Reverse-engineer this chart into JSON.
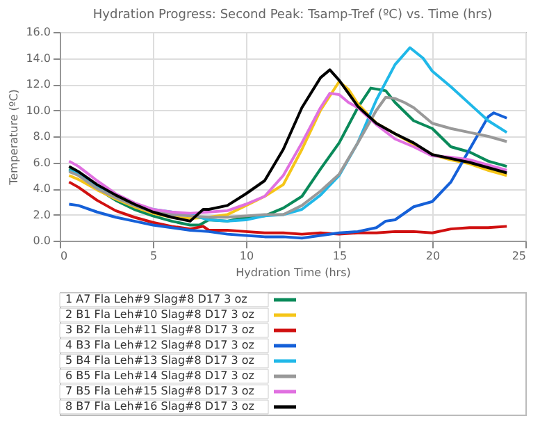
{
  "chart_data": {
    "type": "line",
    "title": "Hydration Progress: Second Peak: Tsamp-Tref (ºC) vs. Time (hrs)",
    "xlabel": "Hydration Time (hrs)",
    "ylabel": "Temperature (ºC)",
    "xlim": [
      0,
      25
    ],
    "xticks": [
      0,
      5,
      10,
      15,
      20,
      25
    ],
    "ylim": [
      0,
      16
    ],
    "yticks": [
      {
        "value": 0,
        "label": "0.0"
      },
      {
        "value": 2,
        "label": "2.0"
      },
      {
        "value": 4,
        "label": "4.0"
      },
      {
        "value": 6,
        "label": "6.0"
      },
      {
        "value": 8,
        "label": "8.0"
      },
      {
        "value": 10,
        "label": "10.0"
      },
      {
        "value": 12,
        "label": "12.0"
      },
      {
        "value": 14,
        "label": "14.0"
      },
      {
        "value": 16,
        "label": "16.0"
      }
    ],
    "grid": true,
    "legend": "bottom",
    "marker": "none",
    "line_style": "solid",
    "series": [
      {
        "name": "1 A7 Fla Leh#9 Slag#8 D17 3 oz",
        "color": "#0a8a5a",
        "x": [
          0.5,
          1,
          2,
          3,
          4,
          5,
          6,
          7,
          7.5,
          8,
          9,
          10,
          11,
          12,
          13,
          14,
          15,
          16,
          16.7,
          17.5,
          18,
          19,
          20,
          21,
          22,
          23,
          24
        ],
        "values": [
          5.5,
          5.1,
          4.0,
          3.1,
          2.4,
          1.9,
          1.5,
          1.2,
          1.2,
          1.6,
          1.5,
          1.8,
          1.9,
          2.5,
          3.4,
          5.5,
          7.5,
          10.2,
          11.7,
          11.5,
          10.6,
          9.2,
          8.6,
          7.2,
          6.8,
          6.1,
          5.7
        ]
      },
      {
        "name": "2 B1 Fla Leh#10 Slag#8 D17 3 oz",
        "color": "#f5c518",
        "x": [
          0.5,
          1,
          2,
          3,
          4,
          5,
          6,
          7,
          8,
          9,
          10,
          11,
          12,
          13,
          14,
          15,
          15.5,
          16,
          17,
          18,
          19,
          20,
          21,
          22,
          23,
          24
        ],
        "values": [
          5.0,
          4.7,
          3.9,
          3.2,
          2.6,
          2.1,
          1.8,
          1.7,
          1.8,
          2.0,
          2.7,
          3.4,
          4.3,
          7.0,
          10.0,
          12.2,
          11.6,
          10.5,
          9.0,
          8.2,
          7.4,
          6.6,
          6.2,
          5.9,
          5.4,
          5.0
        ]
      },
      {
        "name": "3 B2 Fla Leh#11 Slag#8 D17 3 oz",
        "color": "#d01010",
        "x": [
          0.5,
          1,
          2,
          3,
          4,
          5,
          6,
          7,
          7.7,
          8,
          9,
          10,
          11,
          12,
          13,
          14,
          15,
          16,
          17,
          18,
          19,
          20,
          21,
          22,
          23,
          24
        ],
        "values": [
          4.5,
          4.1,
          3.1,
          2.3,
          1.8,
          1.4,
          1.1,
          0.9,
          1.1,
          0.8,
          0.8,
          0.7,
          0.6,
          0.6,
          0.5,
          0.6,
          0.5,
          0.6,
          0.6,
          0.7,
          0.7,
          0.6,
          0.9,
          1.0,
          1.0,
          1.1
        ]
      },
      {
        "name": "4 B3 Fla Leh#12 Slag#8 D17 3 oz",
        "color": "#1560d8",
        "x": [
          0.5,
          1,
          2,
          3,
          4,
          5,
          6,
          7,
          8,
          9,
          10,
          11,
          12,
          13,
          14,
          15,
          16,
          17,
          17.5,
          18,
          19,
          20,
          21,
          22,
          23,
          23.3,
          24
        ],
        "values": [
          2.8,
          2.7,
          2.2,
          1.8,
          1.5,
          1.2,
          1.0,
          0.8,
          0.7,
          0.5,
          0.4,
          0.3,
          0.3,
          0.2,
          0.4,
          0.6,
          0.7,
          1.0,
          1.5,
          1.6,
          2.6,
          3.0,
          4.5,
          7.0,
          9.5,
          9.8,
          9.4
        ]
      },
      {
        "name": "5 B4 Fla Leh#13 Slag#8 D17 3 oz",
        "color": "#20b8e8",
        "x": [
          0.5,
          1,
          2,
          3,
          4,
          5,
          6,
          7,
          8,
          9,
          10,
          11,
          12,
          13,
          14,
          15,
          16,
          17,
          18,
          18.8,
          19.5,
          20,
          21,
          22,
          23,
          24
        ],
        "values": [
          5.4,
          5.1,
          4.2,
          3.4,
          2.8,
          2.4,
          2.2,
          2.0,
          1.6,
          1.5,
          1.6,
          1.9,
          2.0,
          2.4,
          3.5,
          5.0,
          7.5,
          10.8,
          13.5,
          14.8,
          14.0,
          13.0,
          11.8,
          10.5,
          9.2,
          8.3
        ]
      },
      {
        "name": "6 B5 Fla Leh#14 Slag#8 D17 3 oz",
        "color": "#999999",
        "x": [
          0.5,
          1,
          2,
          3,
          4,
          5,
          6,
          7,
          8,
          9,
          10,
          11,
          12,
          13,
          14,
          15,
          16,
          17,
          17.5,
          18,
          18.5,
          19,
          20,
          21,
          22,
          23,
          24
        ],
        "values": [
          5.3,
          5.0,
          4.0,
          3.3,
          2.7,
          2.2,
          2.0,
          1.9,
          1.8,
          1.8,
          1.9,
          2.0,
          2.0,
          2.7,
          3.8,
          5.1,
          7.5,
          10.0,
          11.0,
          10.9,
          10.6,
          10.2,
          9.0,
          8.6,
          8.3,
          8.0,
          7.6
        ]
      },
      {
        "name": "7 B5 Fla Leh#15 Slag#8 D17 3 oz",
        "color": "#e070e0",
        "x": [
          0.5,
          1,
          2,
          3,
          4,
          5,
          6,
          7,
          8,
          9,
          10,
          11,
          12,
          13,
          14,
          14.5,
          15,
          15.5,
          16,
          17,
          18,
          19,
          20,
          21,
          22,
          23,
          24
        ],
        "values": [
          6.1,
          5.7,
          4.6,
          3.6,
          2.9,
          2.4,
          2.2,
          2.1,
          2.2,
          2.3,
          2.8,
          3.4,
          5.0,
          7.5,
          10.2,
          11.3,
          11.2,
          10.6,
          10.2,
          8.9,
          7.8,
          7.2,
          6.5,
          6.4,
          6.2,
          5.8,
          5.4
        ]
      },
      {
        "name": "8 B7 Fla Leh#16 Slag#8 D17 3 oz",
        "color": "#000000",
        "x": [
          0.5,
          1,
          2,
          3,
          4,
          5,
          6,
          7,
          7.7,
          8,
          9,
          10,
          11,
          12,
          13,
          14,
          14.5,
          15,
          16,
          17,
          18,
          19,
          20,
          21,
          22,
          23,
          24
        ],
        "values": [
          5.7,
          5.3,
          4.3,
          3.5,
          2.8,
          2.2,
          1.8,
          1.5,
          2.4,
          2.4,
          2.7,
          3.6,
          4.6,
          7.0,
          10.2,
          12.5,
          13.1,
          12.3,
          10.3,
          9.0,
          8.2,
          7.5,
          6.6,
          6.3,
          6.0,
          5.6,
          5.2
        ]
      }
    ]
  }
}
